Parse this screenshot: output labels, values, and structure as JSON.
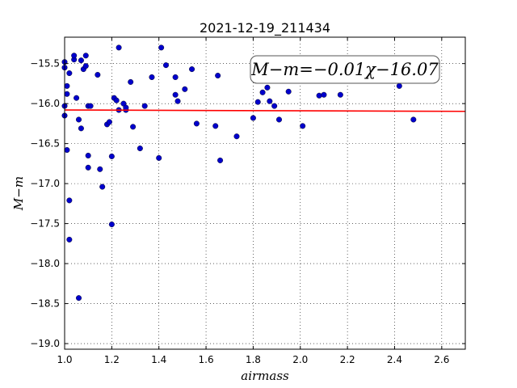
{
  "chart_data": {
    "type": "scatter",
    "title": "2021-12-19_211434",
    "xlabel": "airmass",
    "ylabel": "M−m",
    "xlim": [
      1.0,
      2.7
    ],
    "ylim": [
      -19.07,
      -15.17
    ],
    "y_inverted": true,
    "grid": true,
    "x_ticks": [
      1.0,
      1.2,
      1.4,
      1.6,
      1.8,
      2.0,
      2.2,
      2.4,
      2.6
    ],
    "x_tick_labels": [
      "1.0",
      "1.2",
      "1.4",
      "1.6",
      "1.8",
      "2.0",
      "2.2",
      "2.4",
      "2.6"
    ],
    "y_ticks": [
      -15.5,
      -16.0,
      -16.5,
      -17.0,
      -17.5,
      -18.0,
      -18.5,
      -19.0
    ],
    "y_tick_labels": [
      "−15.5",
      "−16.0",
      "−16.5",
      "−17.0",
      "−17.5",
      "−18.0",
      "−18.5",
      "−19.0"
    ],
    "point_color": "#0000cc",
    "line_color": "#ff0000",
    "fit": {
      "slope": -0.01,
      "intercept": -16.07
    },
    "annotation": "M−m=−0.01χ−16.07",
    "points": [
      [
        1.0,
        -15.48
      ],
      [
        1.0,
        -15.55
      ],
      [
        1.01,
        -15.78
      ],
      [
        1.01,
        -15.88
      ],
      [
        1.0,
        -16.03
      ],
      [
        1.0,
        -16.15
      ],
      [
        1.01,
        -16.58
      ],
      [
        1.02,
        -15.62
      ],
      [
        1.02,
        -17.21
      ],
      [
        1.02,
        -17.7
      ],
      [
        1.04,
        -15.45
      ],
      [
        1.04,
        -15.4
      ],
      [
        1.05,
        -15.93
      ],
      [
        1.06,
        -16.2
      ],
      [
        1.06,
        -18.43
      ],
      [
        1.07,
        -15.46
      ],
      [
        1.07,
        -16.31
      ],
      [
        1.08,
        -15.57
      ],
      [
        1.09,
        -15.4
      ],
      [
        1.09,
        -15.53
      ],
      [
        1.1,
        -16.03
      ],
      [
        1.1,
        -16.8
      ],
      [
        1.1,
        -16.65
      ],
      [
        1.11,
        -16.03
      ],
      [
        1.14,
        -15.64
      ],
      [
        1.15,
        -16.82
      ],
      [
        1.16,
        -17.04
      ],
      [
        1.18,
        -16.26
      ],
      [
        1.19,
        -16.23
      ],
      [
        1.2,
        -16.66
      ],
      [
        1.2,
        -17.51
      ],
      [
        1.21,
        -15.93
      ],
      [
        1.22,
        -15.96
      ],
      [
        1.23,
        -15.3
      ],
      [
        1.23,
        -16.08
      ],
      [
        1.25,
        -16.0
      ],
      [
        1.26,
        -16.08
      ],
      [
        1.26,
        -16.05
      ],
      [
        1.28,
        -15.73
      ],
      [
        1.29,
        -16.29
      ],
      [
        1.32,
        -16.56
      ],
      [
        1.34,
        -16.03
      ],
      [
        1.37,
        -15.67
      ],
      [
        1.4,
        -16.68
      ],
      [
        1.41,
        -15.3
      ],
      [
        1.43,
        -15.52
      ],
      [
        1.47,
        -15.67
      ],
      [
        1.47,
        -15.89
      ],
      [
        1.48,
        -15.97
      ],
      [
        1.51,
        -15.82
      ],
      [
        1.54,
        -15.57
      ],
      [
        1.56,
        -16.25
      ],
      [
        1.64,
        -16.28
      ],
      [
        1.65,
        -15.65
      ],
      [
        1.66,
        -16.71
      ],
      [
        1.73,
        -16.41
      ],
      [
        1.8,
        -16.18
      ],
      [
        1.82,
        -15.65
      ],
      [
        1.82,
        -15.98
      ],
      [
        1.84,
        -15.86
      ],
      [
        1.86,
        -15.8
      ],
      [
        1.87,
        -15.97
      ],
      [
        1.89,
        -16.03
      ],
      [
        1.91,
        -16.2
      ],
      [
        1.93,
        -15.65
      ],
      [
        1.95,
        -15.85
      ],
      [
        2.01,
        -16.28
      ],
      [
        2.08,
        -15.9
      ],
      [
        2.1,
        -15.89
      ],
      [
        2.17,
        -15.89
      ],
      [
        2.42,
        -15.78
      ],
      [
        2.48,
        -16.2
      ]
    ]
  }
}
